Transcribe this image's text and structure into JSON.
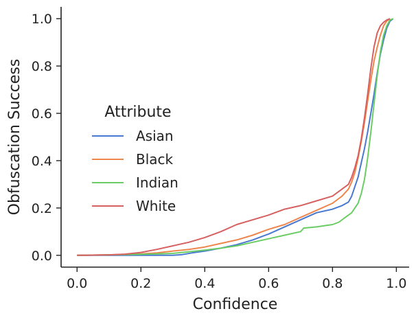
{
  "chart_data": {
    "type": "line",
    "title": "",
    "xlabel": "Confidence",
    "ylabel": "Obfuscation Success",
    "xlim": [
      -0.05,
      1.04
    ],
    "ylim": [
      -0.05,
      1.05
    ],
    "xticks": [
      0.0,
      0.2,
      0.4,
      0.6,
      0.8,
      1.0
    ],
    "xtick_labels": [
      "0.0",
      "0.2",
      "0.4",
      "0.6",
      "0.8",
      "1.0"
    ],
    "yticks": [
      0.0,
      0.2,
      0.4,
      0.6,
      0.8,
      1.0
    ],
    "ytick_labels": [
      "0.0",
      "0.2",
      "0.4",
      "0.6",
      "0.8",
      "1.0"
    ],
    "grid": false,
    "legend": {
      "title": "Attribute",
      "placement": "center-left"
    },
    "series": [
      {
        "name": "Asian",
        "color": "#4878d0",
        "x": [
          0.0,
          0.1,
          0.2,
          0.3,
          0.33,
          0.36,
          0.4,
          0.45,
          0.5,
          0.55,
          0.6,
          0.65,
          0.7,
          0.75,
          0.8,
          0.83,
          0.85,
          0.86,
          0.87,
          0.88,
          0.89,
          0.9,
          0.91,
          0.92,
          0.93,
          0.94,
          0.95,
          0.96,
          0.97,
          0.98,
          0.99
        ],
        "y": [
          0.0,
          0.0,
          0.0,
          0.0,
          0.003,
          0.01,
          0.018,
          0.03,
          0.045,
          0.065,
          0.09,
          0.12,
          0.15,
          0.18,
          0.195,
          0.21,
          0.225,
          0.25,
          0.29,
          0.33,
          0.39,
          0.45,
          0.52,
          0.6,
          0.68,
          0.77,
          0.85,
          0.91,
          0.96,
          0.99,
          1.0
        ]
      },
      {
        "name": "Black",
        "color": "#ee854a",
        "x": [
          0.0,
          0.1,
          0.2,
          0.25,
          0.3,
          0.35,
          0.4,
          0.45,
          0.5,
          0.55,
          0.6,
          0.65,
          0.7,
          0.75,
          0.8,
          0.83,
          0.85,
          0.86,
          0.87,
          0.88,
          0.89,
          0.9,
          0.91,
          0.92,
          0.93,
          0.94,
          0.95,
          0.96,
          0.97,
          0.98
        ],
        "y": [
          0.0,
          0.002,
          0.006,
          0.01,
          0.018,
          0.025,
          0.035,
          0.05,
          0.065,
          0.085,
          0.11,
          0.13,
          0.16,
          0.19,
          0.22,
          0.25,
          0.28,
          0.31,
          0.35,
          0.41,
          0.48,
          0.56,
          0.65,
          0.74,
          0.82,
          0.88,
          0.93,
          0.97,
          0.99,
          1.0
        ]
      },
      {
        "name": "Indian",
        "color": "#6acc64",
        "x": [
          0.0,
          0.1,
          0.2,
          0.3,
          0.35,
          0.4,
          0.45,
          0.5,
          0.55,
          0.6,
          0.65,
          0.7,
          0.71,
          0.75,
          0.8,
          0.82,
          0.84,
          0.86,
          0.87,
          0.88,
          0.89,
          0.9,
          0.91,
          0.92,
          0.93,
          0.94,
          0.95,
          0.96,
          0.97,
          0.98,
          0.99
        ],
        "y": [
          0.0,
          0.002,
          0.004,
          0.008,
          0.015,
          0.022,
          0.03,
          0.04,
          0.055,
          0.07,
          0.085,
          0.1,
          0.115,
          0.12,
          0.13,
          0.14,
          0.16,
          0.18,
          0.2,
          0.22,
          0.26,
          0.32,
          0.41,
          0.52,
          0.64,
          0.76,
          0.86,
          0.93,
          0.97,
          0.995,
          1.0
        ]
      },
      {
        "name": "White",
        "color": "#d65f5f",
        "x": [
          0.0,
          0.1,
          0.15,
          0.2,
          0.25,
          0.3,
          0.35,
          0.4,
          0.45,
          0.5,
          0.55,
          0.6,
          0.65,
          0.7,
          0.75,
          0.8,
          0.83,
          0.85,
          0.86,
          0.87,
          0.88,
          0.89,
          0.9,
          0.91,
          0.92,
          0.93,
          0.94,
          0.95,
          0.96,
          0.97,
          0.98
        ],
        "y": [
          0.0,
          0.002,
          0.005,
          0.012,
          0.025,
          0.04,
          0.055,
          0.075,
          0.1,
          0.13,
          0.15,
          0.17,
          0.195,
          0.21,
          0.23,
          0.25,
          0.28,
          0.3,
          0.33,
          0.37,
          0.42,
          0.49,
          0.58,
          0.68,
          0.79,
          0.88,
          0.94,
          0.97,
          0.985,
          0.995,
          1.0
        ]
      }
    ]
  }
}
